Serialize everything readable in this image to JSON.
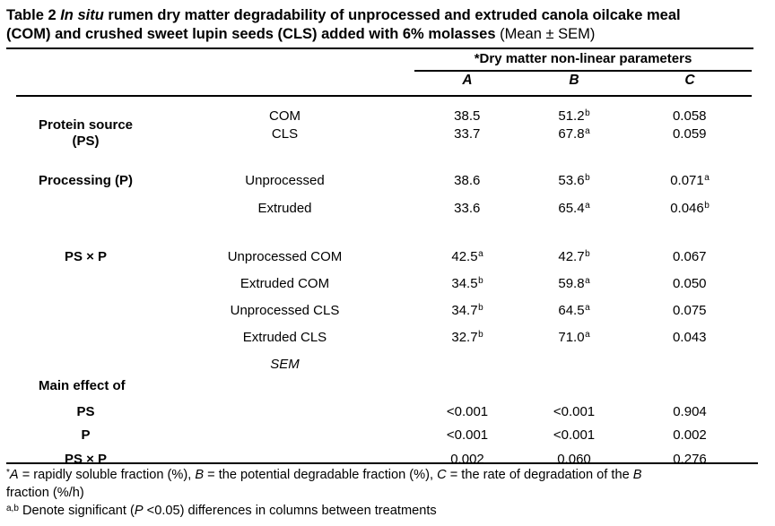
{
  "title": {
    "line1": {
      "bold1": "Table 2 ",
      "italic": "In situ",
      "bold2": " rumen dry matter degradability of unprocessed and extruded canola oilcake meal"
    },
    "line2": {
      "bold": "(COM) and crushed sweet lupin seeds (CLS) added with 6% molasses ",
      "normal": "(Mean ± SEM)"
    }
  },
  "header": {
    "span_label": "*Dry matter non-linear parameters",
    "col_a": "A",
    "col_b": "B",
    "col_c": "C"
  },
  "body": {
    "ps_group": {
      "label1": "Protein source",
      "label2": "(PS)",
      "rows": [
        {
          "t": "COM",
          "a": "38.5",
          "as": "",
          "b": "51.2",
          "bs": "b",
          "c": "0.058",
          "cs": ""
        },
        {
          "t": "CLS",
          "a": "33.7",
          "as": "",
          "b": "67.8",
          "bs": "a",
          "c": "0.059",
          "cs": ""
        }
      ]
    },
    "p_group": {
      "label": "Processing (P)",
      "rows": [
        {
          "t": "Unprocessed",
          "a": "38.6",
          "as": "",
          "b": "53.6",
          "bs": "b",
          "c": "0.071",
          "cs": "a"
        },
        {
          "t": "Extruded",
          "a": "33.6",
          "as": "",
          "b": "65.4",
          "bs": "a",
          "c": "0.046",
          "cs": "b"
        }
      ]
    },
    "psp_group": {
      "label": "PS × P",
      "rows": [
        {
          "t": "Unprocessed COM",
          "a": "42.5",
          "as": "a",
          "b": "42.7",
          "bs": "b",
          "c": "0.067",
          "cs": ""
        },
        {
          "t": "Extruded COM",
          "a": "34.5",
          "as": "b",
          "b": "59.8",
          "bs": "a",
          "c": "0.050",
          "cs": ""
        },
        {
          "t": "Unprocessed CLS",
          "a": "34.7",
          "as": "b",
          "b": "64.5",
          "bs": "a",
          "c": "0.075",
          "cs": ""
        },
        {
          "t": "Extruded CLS",
          "a": "32.7",
          "as": "b",
          "b": "71.0",
          "bs": "a",
          "c": "0.043",
          "cs": ""
        }
      ]
    },
    "sem_label": "SEM",
    "main_effect_label": "Main effect of",
    "effect_rows": [
      {
        "t": "PS",
        "a": "<0.001",
        "b": "<0.001",
        "c": "0.904"
      },
      {
        "t": "P",
        "a": "<0.001",
        "b": "<0.001",
        "c": "0.002"
      },
      {
        "t": "PS × P",
        "a": "0.002",
        "b": "0.060",
        "c": "0.276"
      }
    ]
  },
  "footnotes": {
    "f1": {
      "sup": "*",
      "i1": "A",
      "t1": " = rapidly soluble fraction (%), ",
      "i2": "B",
      "t2": " = the potential degradable fraction (%), ",
      "i3": "C",
      "t3": " = the rate of degradation of the ",
      "i4": "B"
    },
    "f1b": "fraction (%/h)",
    "f2": {
      "sup": "a,b",
      "t1": " Denote significant (",
      "i1": "P",
      "t2": " <0.05) differences in columns between treatments"
    }
  }
}
